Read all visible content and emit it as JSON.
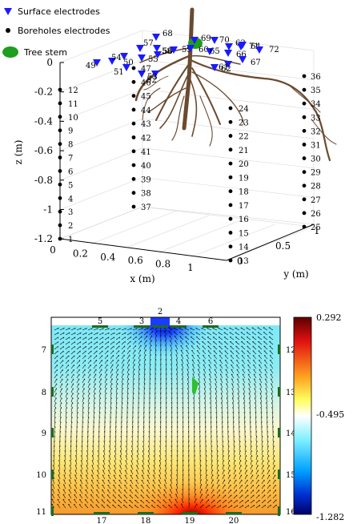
{
  "legend": {
    "surface": "Surface electrodes",
    "borehole": "Boreholes electrodes",
    "stem": "Tree stem"
  },
  "axes3d": {
    "x_label": "x (m)",
    "y_label": "y (m)",
    "z_label": "z (m)",
    "x_ticks": [
      "0",
      "0.2",
      "0.4",
      "0.6",
      "0.8",
      "1"
    ],
    "y_ticks": [
      "0",
      "0.5",
      "1"
    ],
    "z_ticks": [
      "0",
      "-0.2",
      "-0.4",
      "-0.6",
      "-0.8",
      "-1",
      "-1.2"
    ]
  },
  "surface_labels": [
    "49",
    "50",
    "51",
    "52",
    "53",
    "54",
    "55",
    "56",
    "57",
    "58",
    "59",
    "60",
    "61",
    "62",
    "63",
    "64",
    "65",
    "66",
    "67",
    "68",
    "69",
    "70",
    "71",
    "72"
  ],
  "borehole_labels": {
    "left": [
      "1",
      "2",
      "3",
      "4",
      "5",
      "6",
      "7",
      "8",
      "9",
      "10",
      "11",
      "12"
    ],
    "front": [
      "13",
      "14",
      "15",
      "16",
      "17",
      "18",
      "19",
      "20",
      "21",
      "22",
      "23",
      "24"
    ],
    "right": [
      "25",
      "26",
      "27",
      "28",
      "29",
      "30",
      "31",
      "32",
      "33",
      "34",
      "35",
      "36"
    ],
    "back": [
      "37",
      "38",
      "39",
      "40",
      "41",
      "42",
      "43",
      "44",
      "45",
      "46",
      "47"
    ]
  },
  "section": {
    "top_labels": [
      "2",
      "3",
      "4",
      "5",
      "6"
    ],
    "left_labels": [
      "7",
      "8",
      "9",
      "10",
      "11"
    ],
    "right_labels": [
      "12",
      "13",
      "14",
      "15",
      "16"
    ],
    "bottom_labels": [
      "17",
      "18",
      "19",
      "20"
    ]
  },
  "colorbar": {
    "max_label": "0.292",
    "mid_label": "-0.495",
    "min_label": "-1.282",
    "colors": [
      "#8b0000",
      "#ff2a00",
      "#ffff55",
      "#ffffff",
      "#00d4ff",
      "#0000aa"
    ]
  },
  "colors": {
    "electrode_blue": "#1a1aff",
    "stem_green": "#1e9e1e",
    "root_brown": "#6b4a2f",
    "arrow": "#000000"
  }
}
